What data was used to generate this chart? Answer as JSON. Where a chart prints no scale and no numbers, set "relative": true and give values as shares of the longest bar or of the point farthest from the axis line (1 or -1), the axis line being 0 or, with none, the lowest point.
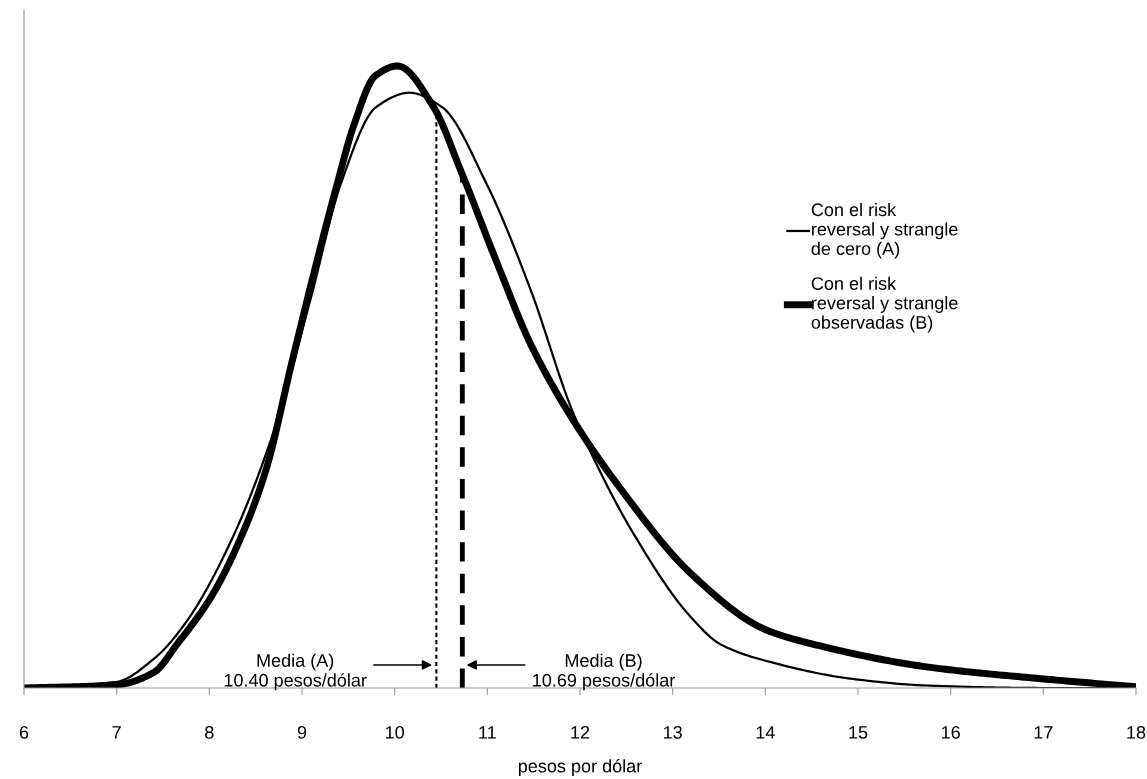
{
  "chart_data": {
    "type": "line",
    "xlabel": "pesos por dólar",
    "relative": true,
    "xlim": [
      6,
      18
    ],
    "xticks": [
      6,
      7,
      8,
      9,
      10,
      11,
      12,
      13,
      14,
      15,
      16,
      17,
      18
    ],
    "series": [
      {
        "name": "Con el risk\nreversal y strangle\nde cero (A)",
        "color": "#000000",
        "x": [
          6,
          7,
          7.41,
          7.75,
          8.23,
          8.7,
          9.09,
          9.42,
          9.8,
          10.16,
          10.51,
          10.99,
          11.47,
          11.9,
          12.09,
          12.57,
          13.19,
          13.52,
          14.1,
          14.92,
          15.74,
          17,
          18
        ],
        "values": [
          0,
          0.01,
          0.048,
          0.106,
          0.235,
          0.415,
          0.624,
          0.811,
          0.934,
          0.957,
          0.934,
          0.811,
          0.639,
          0.452,
          0.387,
          0.25,
          0.115,
          0.07,
          0.04,
          0.015,
          0.004,
          0,
          0
        ]
      },
      {
        "name": "Con el risk\nreversal y strangle\nobservadas (B)",
        "color": "#000000",
        "x": [
          6,
          7,
          7.4,
          7.65,
          8.03,
          8.32,
          8.61,
          8.89,
          9.13,
          9.37,
          9.56,
          9.79,
          10.03,
          10.42,
          10.71,
          11.09,
          11.47,
          11.9,
          12.43,
          13.19,
          14,
          14.5,
          15.74,
          16.97,
          18
        ],
        "values": [
          0,
          0.005,
          0.025,
          0.07,
          0.149,
          0.235,
          0.35,
          0.523,
          0.668,
          0.805,
          0.905,
          0.984,
          1.0,
          0.934,
          0.833,
          0.689,
          0.552,
          0.437,
          0.322,
          0.185,
          0.094,
          0.071,
          0.034,
          0.015,
          0.002
        ]
      }
    ],
    "ref_lines": [
      {
        "axis": "x",
        "value": 10.45,
        "color": "#000000",
        "line_style": "dotted"
      },
      {
        "axis": "x",
        "value": 10.73,
        "color": "#000000",
        "line_style": "dashed"
      }
    ],
    "annotations": [
      "Media (A)\n10.40 pesos/dólar",
      "Media (B)\n10.69 pesos/dólar"
    ],
    "legend": "right",
    "grid": false
  }
}
